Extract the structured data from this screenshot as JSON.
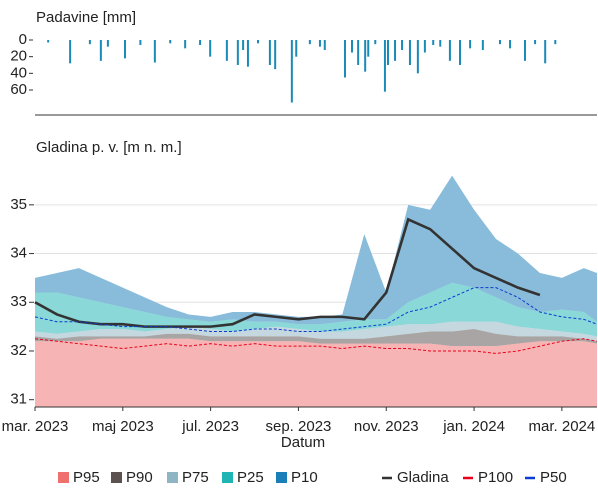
{
  "chart_data": [
    {
      "type": "bar",
      "title": "Padavine [mm]",
      "color": "#1a8ab8",
      "x": [
        0.3,
        0.8,
        1.25,
        1.5,
        1.66,
        2.05,
        2.4,
        2.73,
        3.08,
        3.42,
        3.76,
        3.99,
        4.37,
        4.62,
        4.74,
        4.85,
        5.08,
        5.35,
        5.47,
        5.85,
        5.95,
        6.26,
        6.49,
        6.6,
        7.06,
        7.22,
        7.36,
        7.52,
        7.59,
        7.75,
        7.97,
        8.04,
        8.2,
        8.36,
        8.54,
        8.72,
        8.88,
        9.07,
        9.23,
        9.45,
        9.68,
        9.91,
        10.2,
        10.59,
        10.82,
        11.16,
        11.39,
        11.62,
        11.85
      ],
      "values": [
        3,
        28,
        5,
        25,
        8,
        22,
        6,
        27,
        4,
        10,
        6,
        20,
        25,
        30,
        12,
        32,
        4,
        30,
        35,
        75,
        20,
        5,
        8,
        12,
        45,
        15,
        30,
        38,
        20,
        5,
        62,
        30,
        25,
        12,
        30,
        40,
        15,
        6,
        8,
        25,
        30,
        10,
        12,
        5,
        10,
        25,
        5,
        28,
        5
      ],
      "xlim": [
        0,
        12.8
      ],
      "ylim": [
        0,
        90
      ],
      "yticks": [
        0,
        20,
        40,
        60
      ],
      "reversed": true
    },
    {
      "type": "area",
      "title": "Gladina p. v. [m n. m.]",
      "x_label": "Datum",
      "x": [
        0,
        0.5,
        1,
        1.5,
        2,
        2.5,
        3,
        3.5,
        4,
        4.5,
        5,
        5.5,
        6,
        6.5,
        7,
        7.5,
        8,
        8.5,
        9,
        9.5,
        10,
        10.5,
        11,
        11.5,
        12,
        12.5,
        12.8
      ],
      "xlim": [
        0,
        12.8
      ],
      "xticks": [
        {
          "value": 0,
          "label": "mar. 2023"
        },
        {
          "value": 2,
          "label": "maj 2023"
        },
        {
          "value": 4,
          "label": "jul. 2023"
        },
        {
          "value": 6,
          "label": "sep. 2023"
        },
        {
          "value": 8,
          "label": "nov. 2023"
        },
        {
          "value": 10,
          "label": "jan. 2024"
        },
        {
          "value": 12,
          "label": "mar. 2024"
        }
      ],
      "ylim": [
        30.85,
        35.9
      ],
      "yticks": [
        31,
        32,
        33,
        34,
        35
      ],
      "grid": true,
      "series": [
        {
          "name": "P95",
          "color": "#f07070",
          "style": "area",
          "values": [
            32.2,
            32.2,
            32.2,
            32.25,
            32.25,
            32.25,
            32.25,
            32.25,
            32.2,
            32.2,
            32.2,
            32.2,
            32.2,
            32.15,
            32.15,
            32.15,
            32.15,
            32.15,
            32.15,
            32.1,
            32.1,
            32.1,
            32.15,
            32.2,
            32.2,
            32.2,
            32.15
          ]
        },
        {
          "name": "P90",
          "color": "#5b5250",
          "style": "area",
          "values": [
            32.3,
            32.25,
            32.3,
            32.3,
            32.3,
            32.3,
            32.35,
            32.35,
            32.3,
            32.3,
            32.3,
            32.3,
            32.3,
            32.25,
            32.25,
            32.25,
            32.3,
            32.35,
            32.4,
            32.4,
            32.45,
            32.35,
            32.3,
            32.3,
            32.3,
            32.25,
            32.2
          ]
        },
        {
          "name": "P75",
          "color": "#8fb4c4",
          "style": "area",
          "values": [
            32.4,
            32.35,
            32.4,
            32.45,
            32.45,
            32.4,
            32.45,
            32.5,
            32.45,
            32.4,
            32.45,
            32.5,
            32.45,
            32.4,
            32.4,
            32.45,
            32.5,
            32.55,
            32.55,
            32.6,
            32.6,
            32.6,
            32.5,
            32.45,
            32.4,
            32.35,
            32.3
          ]
        },
        {
          "name": "P25",
          "color": "#1fb5b5",
          "style": "area",
          "values": [
            33.2,
            33.2,
            33.1,
            33.0,
            32.9,
            32.8,
            32.7,
            32.65,
            32.6,
            32.65,
            32.6,
            32.6,
            32.55,
            32.55,
            32.6,
            32.65,
            32.65,
            33.0,
            33.2,
            33.4,
            33.3,
            33.1,
            32.9,
            32.8,
            32.85,
            32.8,
            32.6
          ]
        },
        {
          "name": "P10",
          "color": "#1a7fb8",
          "style": "area",
          "values": [
            33.5,
            33.6,
            33.7,
            33.5,
            33.3,
            33.1,
            32.9,
            32.75,
            32.7,
            32.8,
            32.8,
            32.75,
            32.7,
            32.7,
            32.75,
            34.4,
            33.2,
            35.0,
            34.9,
            35.6,
            34.9,
            34.3,
            34.0,
            33.6,
            33.5,
            33.7,
            33.6
          ]
        },
        {
          "name": "Gladina",
          "color": "#333333",
          "style": "line",
          "values": [
            33.0,
            32.75,
            32.6,
            32.55,
            32.55,
            32.5,
            32.5,
            32.5,
            32.5,
            32.55,
            32.75,
            32.7,
            32.65,
            32.7,
            32.7,
            32.65,
            33.2,
            34.7,
            34.5,
            34.1,
            33.7,
            33.5,
            33.3,
            33.15,
            null,
            null,
            null
          ]
        },
        {
          "name": "P100",
          "color": "#e8001c",
          "style": "dashed",
          "values": [
            32.25,
            32.2,
            32.15,
            32.1,
            32.05,
            32.1,
            32.15,
            32.1,
            32.15,
            32.1,
            32.15,
            32.1,
            32.1,
            32.1,
            32.05,
            32.1,
            32.05,
            32.05,
            32.0,
            32.0,
            32.0,
            31.95,
            32.0,
            32.1,
            32.2,
            32.25,
            32.2
          ]
        },
        {
          "name": "P50",
          "color": "#0a3cd0",
          "style": "dashed",
          "values": [
            32.7,
            32.6,
            32.6,
            32.55,
            32.5,
            32.5,
            32.5,
            32.45,
            32.4,
            32.4,
            32.45,
            32.45,
            32.4,
            32.4,
            32.45,
            32.5,
            32.55,
            32.8,
            32.9,
            33.1,
            33.3,
            33.3,
            33.1,
            32.8,
            32.7,
            32.65,
            32.55
          ]
        }
      ]
    }
  ]
}
